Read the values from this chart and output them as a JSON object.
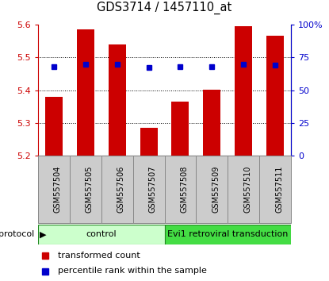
{
  "title": "GDS3714 / 1457110_at",
  "samples": [
    "GSM557504",
    "GSM557505",
    "GSM557506",
    "GSM557507",
    "GSM557508",
    "GSM557509",
    "GSM557510",
    "GSM557511"
  ],
  "transformed_count": [
    5.38,
    5.585,
    5.54,
    5.285,
    5.365,
    5.4,
    5.595,
    5.565
  ],
  "percentile_rank": [
    68,
    70,
    70,
    67,
    68,
    68,
    70,
    69
  ],
  "ylim_left": [
    5.2,
    5.6
  ],
  "ylim_right": [
    0,
    100
  ],
  "bar_bottom": 5.2,
  "bar_color": "#cc0000",
  "dot_color": "#0000cc",
  "yticks_left": [
    5.2,
    5.3,
    5.4,
    5.5,
    5.6
  ],
  "yticks_right": [
    0,
    25,
    50,
    75,
    100
  ],
  "ytick_labels_right": [
    "0",
    "25",
    "50",
    "75",
    "100%"
  ],
  "group_control_color": "#ccffcc",
  "group_evi1_color": "#44dd44",
  "group_border_color": "#228822",
  "sample_box_color": "#cccccc",
  "sample_box_border": "#888888",
  "tick_color_left": "#cc0000",
  "tick_color_right": "#0000cc",
  "legend": [
    {
      "label": "transformed count",
      "color": "#cc0000"
    },
    {
      "label": "percentile rank within the sample",
      "color": "#0000cc"
    }
  ]
}
